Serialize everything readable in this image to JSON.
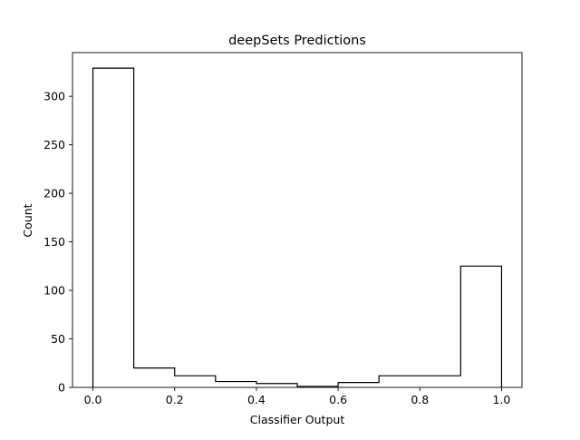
{
  "chart_data": {
    "type": "bar",
    "title": "deepSets Predictions",
    "xlabel": "Classifier Output",
    "ylabel": "Count",
    "bin_edges": [
      0.0,
      0.1,
      0.2,
      0.3,
      0.4,
      0.5,
      0.6,
      0.7,
      0.8,
      0.9,
      1.0
    ],
    "values": [
      329,
      20,
      12,
      6,
      4,
      1,
      5,
      12,
      12,
      125
    ],
    "xlim": [
      -0.05,
      1.05
    ],
    "ylim": [
      0,
      345
    ],
    "xticks": [
      0.0,
      0.2,
      0.4,
      0.6,
      0.8,
      1.0
    ],
    "xtick_labels": [
      "0.0",
      "0.2",
      "0.4",
      "0.6",
      "0.8",
      "1.0"
    ],
    "yticks": [
      0,
      50,
      100,
      150,
      200,
      250,
      300
    ],
    "ytick_labels": [
      "0",
      "50",
      "100",
      "150",
      "200",
      "250",
      "300"
    ],
    "grid": false,
    "histtype": "step",
    "line_color": "#000000"
  }
}
